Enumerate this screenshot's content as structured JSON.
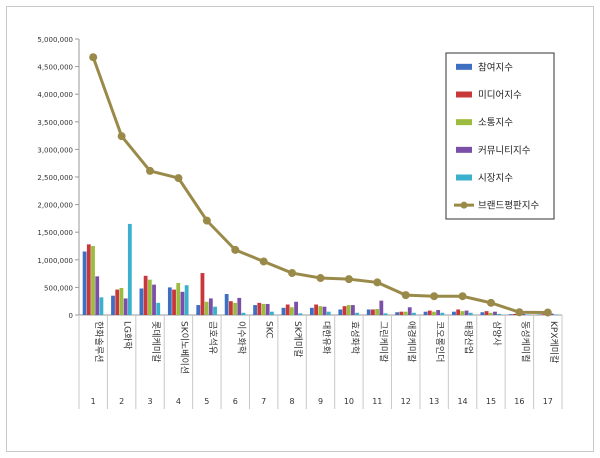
{
  "chart_data": {
    "type": "bar",
    "categories": [
      "한화솔루션",
      "LG화학",
      "롯데케미칼",
      "SK이노베이션",
      "금호석유",
      "이수화학",
      "SKC",
      "SK케미칼",
      "대한유화",
      "효성화학",
      "그린케미칼",
      "애경케미칼",
      "코오롱인더",
      "태광산업",
      "삼양사",
      "동성케미컬",
      "KPX케미칼"
    ],
    "ranks": [
      "1",
      "2",
      "3",
      "4",
      "5",
      "6",
      "7",
      "8",
      "9",
      "10",
      "11",
      "12",
      "13",
      "14",
      "15",
      "16",
      "17"
    ],
    "ylim": [
      0,
      5000000
    ],
    "yticks": [
      "0",
      "500,000",
      "1,000,000",
      "1,500,000",
      "2,000,000",
      "2,500,000",
      "3,000,000",
      "3,500,000",
      "4,000,000",
      "4,500,000",
      "5,000,000"
    ],
    "grid": false,
    "legend_placement": "top-right",
    "series": [
      {
        "name": "참여지수",
        "type": "bar",
        "color": "#3f6fc1",
        "values": [
          1150000,
          350000,
          480000,
          500000,
          180000,
          380000,
          180000,
          130000,
          130000,
          100000,
          100000,
          50000,
          60000,
          60000,
          50000,
          15000,
          10000
        ]
      },
      {
        "name": "미디어지수",
        "type": "bar",
        "color": "#c8383a",
        "values": [
          1280000,
          460000,
          710000,
          460000,
          760000,
          250000,
          220000,
          190000,
          190000,
          160000,
          100000,
          60000,
          80000,
          100000,
          70000,
          20000,
          15000
        ]
      },
      {
        "name": "소통지수",
        "type": "bar",
        "color": "#9bbc3f",
        "values": [
          1250000,
          490000,
          640000,
          580000,
          240000,
          220000,
          200000,
          140000,
          160000,
          180000,
          110000,
          60000,
          60000,
          70000,
          40000,
          15000,
          10000
        ]
      },
      {
        "name": "커뮤니티지수",
        "type": "bar",
        "color": "#7b4fa8",
        "values": [
          700000,
          300000,
          550000,
          420000,
          300000,
          310000,
          200000,
          240000,
          150000,
          180000,
          260000,
          140000,
          90000,
          80000,
          60000,
          20000,
          25000
        ]
      },
      {
        "name": "시장지수",
        "type": "bar",
        "color": "#39b0cc",
        "values": [
          320000,
          1650000,
          220000,
          540000,
          150000,
          40000,
          60000,
          30000,
          60000,
          40000,
          30000,
          40000,
          40000,
          40000,
          20000,
          10000,
          10000
        ]
      },
      {
        "name": "브랜드평판지수",
        "type": "line",
        "color": "#9a8a4a",
        "values": [
          4670000,
          3240000,
          2610000,
          2480000,
          1710000,
          1180000,
          970000,
          760000,
          670000,
          650000,
          590000,
          360000,
          340000,
          340000,
          220000,
          50000,
          45000
        ]
      }
    ]
  }
}
